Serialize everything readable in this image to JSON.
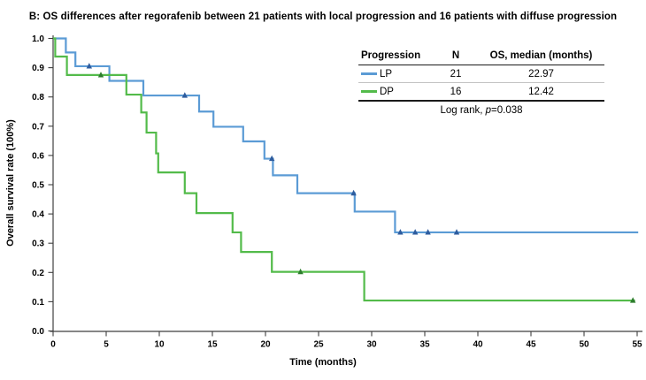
{
  "chart_data": {
    "type": "line",
    "subtype": "kaplan-meier-step",
    "title": "B: OS differences after regorafenib between 21 patients with local progression and 16 patients with diffuse progression",
    "xlabel": "Time (months)",
    "ylabel": "Overall survival rate (100%)",
    "xlim": [
      0,
      55
    ],
    "ylim": [
      0.0,
      1.0
    ],
    "grid": false,
    "x_ticks": [
      {
        "v": 0,
        "label": "0"
      },
      {
        "v": 5,
        "label": "5"
      },
      {
        "v": 10,
        "label": "10"
      },
      {
        "v": 15,
        "label": "15"
      },
      {
        "v": 20,
        "label": "20"
      },
      {
        "v": 25,
        "label": "25"
      },
      {
        "v": 30,
        "label": "30"
      },
      {
        "v": 35,
        "label": "35"
      },
      {
        "v": 40,
        "label": "40"
      },
      {
        "v": 45,
        "label": "45"
      },
      {
        "v": 50,
        "label": "50"
      },
      {
        "v": 55,
        "label": "55"
      }
    ],
    "y_ticks": [
      {
        "v": 0.0,
        "label": "0.0"
      },
      {
        "v": 0.1,
        "label": "0.1"
      },
      {
        "v": 0.2,
        "label": "0.2"
      },
      {
        "v": 0.3,
        "label": "0.3"
      },
      {
        "v": 0.4,
        "label": "0.4"
      },
      {
        "v": 0.5,
        "label": "0.5"
      },
      {
        "v": 0.6,
        "label": "0.6"
      },
      {
        "v": 0.7,
        "label": "0.7"
      },
      {
        "v": 0.8,
        "label": "0.8"
      },
      {
        "v": 0.9,
        "label": "0.9"
      },
      {
        "v": 1.0,
        "label": "1.0"
      }
    ],
    "series": [
      {
        "name": "LP",
        "n": 21,
        "median_os_months": 22.97,
        "color": "#5B9BD5",
        "censor_color": "#2E5C9E",
        "steps": [
          [
            0,
            1.0
          ],
          [
            1.2,
            0.952
          ],
          [
            2.1,
            0.905
          ],
          [
            5.3,
            0.855
          ],
          [
            8.5,
            0.805
          ],
          [
            13.75,
            0.75
          ],
          [
            15.1,
            0.698
          ],
          [
            17.9,
            0.648
          ],
          [
            19.9,
            0.589
          ],
          [
            20.7,
            0.532
          ],
          [
            23.0,
            0.471
          ],
          [
            28.4,
            0.408
          ],
          [
            32.2,
            0.337
          ]
        ],
        "end": 55.1,
        "censors": [
          [
            3.4,
            0.905
          ],
          [
            12.4,
            0.805
          ],
          [
            20.6,
            0.589
          ],
          [
            28.3,
            0.471
          ],
          [
            32.7,
            0.337
          ],
          [
            34.1,
            0.337
          ],
          [
            35.3,
            0.337
          ],
          [
            38.0,
            0.337
          ]
        ]
      },
      {
        "name": "DP",
        "n": 16,
        "median_os_months": 12.42,
        "color": "#53BB4A",
        "censor_color": "#2E7D2E",
        "steps": [
          [
            0,
            1.0
          ],
          [
            0.2,
            0.938
          ],
          [
            1.3,
            0.875
          ],
          [
            6.9,
            0.808
          ],
          [
            8.3,
            0.747
          ],
          [
            8.8,
            0.678
          ],
          [
            9.7,
            0.607
          ],
          [
            9.9,
            0.542
          ],
          [
            12.4,
            0.471
          ],
          [
            13.5,
            0.403
          ],
          [
            16.9,
            0.337
          ],
          [
            17.7,
            0.27
          ],
          [
            20.6,
            0.202
          ],
          [
            29.3,
            0.104
          ]
        ],
        "end": 54.8,
        "censors": [
          [
            4.5,
            0.875
          ],
          [
            23.3,
            0.202
          ],
          [
            54.6,
            0.104
          ]
        ]
      }
    ]
  },
  "legend": {
    "headers": [
      "Progression",
      "N",
      "OS, median (months)"
    ],
    "rows": [
      {
        "label": "LP",
        "n": "21",
        "median": "22.97"
      },
      {
        "label": "DP",
        "n": "16",
        "median": "12.42"
      }
    ],
    "footer_prefix": "Log rank, ",
    "footer_italic": "p",
    "footer_suffix": "=0.038"
  }
}
